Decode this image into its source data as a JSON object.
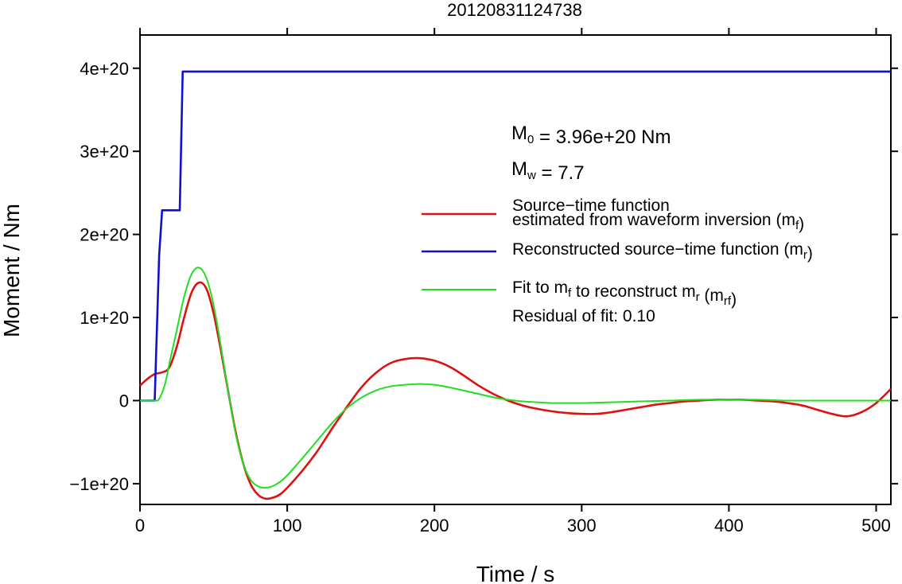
{
  "chart_data": {
    "type": "line",
    "title": "20120831124738",
    "xlabel": "Time / s",
    "ylabel": "Moment / Nm",
    "xlim": [
      0,
      510
    ],
    "ylim": [
      -1.25e+20,
      4.4e+20
    ],
    "x_ticks": [
      0,
      100,
      200,
      300,
      400,
      500
    ],
    "x_tick_labels": [
      "0",
      "100",
      "200",
      "300",
      "400",
      "500"
    ],
    "y_ticks": [
      -1e+20,
      0,
      1e+20,
      2e+20,
      3e+20,
      4e+20
    ],
    "y_tick_labels": [
      "−1e+20",
      "0",
      "1e+20",
      "2e+20",
      "3e+20",
      "4e+20"
    ],
    "grid": false,
    "annotations": {
      "m0": {
        "main": "M",
        "sub": "0",
        "rest": " = 3.96e+20 Nm"
      },
      "mw": {
        "main": "M",
        "sub": "w",
        "rest": " = 7.7"
      }
    },
    "legend": {
      "placement": "right",
      "entries": [
        {
          "lines": [
            [
              {
                "t": "Source−time function"
              }
            ],
            [
              {
                "t": "estimated from waveform inversion (m"
              },
              {
                "t": "f",
                "sub": true
              },
              {
                "t": ")"
              }
            ]
          ],
          "color": "#dd1111"
        },
        {
          "lines": [
            [
              {
                "t": "Reconstructed source−time function (m"
              },
              {
                "t": "r",
                "sub": true
              },
              {
                "t": ")"
              }
            ]
          ],
          "color": "#1111cc"
        },
        {
          "lines": [
            [
              {
                "t": "Fit to m"
              },
              {
                "t": "f",
                "sub": true
              },
              {
                "t": " to reconstruct m"
              },
              {
                "t": "r",
                "sub": true
              },
              {
                "t": " (m"
              },
              {
                "t": "rf",
                "sub": true
              },
              {
                "t": ")"
              }
            ]
          ],
          "color": "#22dd22"
        }
      ],
      "note": "Residual of fit: 0.10"
    },
    "series": [
      {
        "color": "#dd1111",
        "x": [
          0,
          5,
          10,
          15,
          20,
          25,
          30,
          35,
          40,
          45,
          50,
          55,
          60,
          65,
          70,
          75,
          80,
          85,
          90,
          95,
          100,
          110,
          120,
          130,
          140,
          150,
          160,
          170,
          180,
          190,
          200,
          210,
          220,
          230,
          240,
          250,
          260,
          270,
          280,
          290,
          300,
          310,
          320,
          330,
          340,
          350,
          360,
          370,
          380,
          390,
          400,
          410,
          420,
          430,
          440,
          450,
          460,
          470,
          480,
          490,
          500,
          510
        ],
        "y": [
          1.8e+19,
          2.6e+19,
          3.2e+19,
          3.4e+19,
          4e+19,
          6.5e+19,
          1e+20,
          1.3e+20,
          1.42e+20,
          1.35e+20,
          1.05e+20,
          6e+19,
          1e+19,
          -3.8e+19,
          -7.5e+19,
          -1e+20,
          -1.13e+20,
          -1.18e+20,
          -1.17e+20,
          -1.13e+20,
          -1.05e+20,
          -8.5e+19,
          -6.2e+19,
          -3.5e+19,
          -9e+18,
          1.5e+19,
          3.3e+19,
          4.5e+19,
          5e+19,
          5.1e+19,
          4.8e+19,
          4.1e+19,
          3e+19,
          1.8e+19,
          8e+18,
          0.0,
          -6e+18,
          -1e+19,
          -1.3e+19,
          -1.5e+19,
          -1.6e+19,
          -1.6e+19,
          -1.4e+19,
          -1.1e+19,
          -8e+18,
          -5e+18,
          -3e+18,
          -1e+18,
          0.0,
          1e+18,
          1e+18,
          1e+18,
          0.0,
          -1e+18,
          -3e+18,
          -6e+18,
          -1.1e+19,
          -1.6e+19,
          -1.9e+19,
          -1.4e+19,
          -3e+18,
          1.4e+19
        ]
      },
      {
        "color": "#1111cc",
        "x": [
          0,
          10,
          13,
          15,
          25,
          27,
          29,
          510
        ],
        "y": [
          0,
          0,
          1.75e+20,
          2.29e+20,
          2.29e+20,
          2.29e+20,
          3.96e+20,
          3.96e+20
        ]
      },
      {
        "color": "#22dd22",
        "x": [
          0,
          10,
          13,
          17,
          20,
          25,
          30,
          35,
          40,
          45,
          50,
          55,
          60,
          65,
          70,
          75,
          80,
          85,
          90,
          95,
          100,
          110,
          120,
          130,
          140,
          150,
          160,
          170,
          180,
          190,
          200,
          210,
          220,
          230,
          240,
          250,
          260,
          270,
          280,
          290,
          300,
          320,
          340,
          360,
          380,
          400,
          420,
          440,
          460,
          480,
          500,
          510
        ],
        "y": [
          0,
          0,
          2e+18,
          2e+19,
          4.5e+19,
          8.5e+19,
          1.25e+20,
          1.52e+20,
          1.6e+20,
          1.48e+20,
          1.15e+20,
          6.5e+19,
          1e+19,
          -4e+19,
          -7.5e+19,
          -9.5e+19,
          -1.03e+20,
          -1.05e+20,
          -1.03e+20,
          -9.8e+19,
          -9e+19,
          -7e+19,
          -4.9e+19,
          -2.8e+19,
          -1e+19,
          3e+18,
          1.2e+19,
          1.7e+19,
          1.9e+19,
          2e+19,
          1.9e+19,
          1.6e+19,
          1.2e+19,
          8e+18,
          4e+18,
          1e+18,
          -1e+18,
          -2e+18,
          -3e+18,
          -3e+18,
          -3e+18,
          -2e+18,
          -1e+18,
          0.0,
          1e+18,
          1e+18,
          1e+18,
          0.0,
          0.0,
          0.0,
          0.0,
          0.0
        ]
      }
    ]
  }
}
